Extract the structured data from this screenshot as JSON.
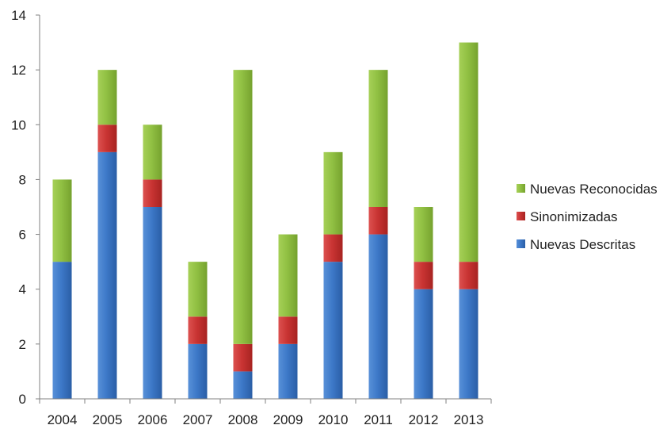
{
  "chart_data": {
    "type": "bar",
    "stacked": true,
    "categories": [
      "2004",
      "2005",
      "2006",
      "2007",
      "2008",
      "2009",
      "2010",
      "2011",
      "2012",
      "2013"
    ],
    "series": [
      {
        "name": "Nuevas Descritas",
        "color": "#3a73c4",
        "values": [
          5,
          9,
          7,
          2,
          1,
          2,
          5,
          6,
          4,
          4
        ]
      },
      {
        "name": "Sinonimizadas",
        "color": "#c8302f",
        "values": [
          0,
          1,
          1,
          1,
          1,
          1,
          1,
          1,
          1,
          1
        ]
      },
      {
        "name": "Nuevas Reconocidas",
        "color": "#8fbd3e",
        "values": [
          3,
          2,
          2,
          2,
          10,
          3,
          3,
          5,
          2,
          8
        ]
      }
    ],
    "ylim": [
      0,
      14
    ],
    "yticks": [
      0,
      2,
      4,
      6,
      8,
      10,
      12,
      14
    ],
    "title": "",
    "xlabel": "",
    "ylabel": "",
    "grid": false,
    "legend": {
      "placement": "right",
      "order": [
        "Nuevas Reconocidas",
        "Sinonimizadas",
        "Nuevas Descritas"
      ]
    }
  }
}
